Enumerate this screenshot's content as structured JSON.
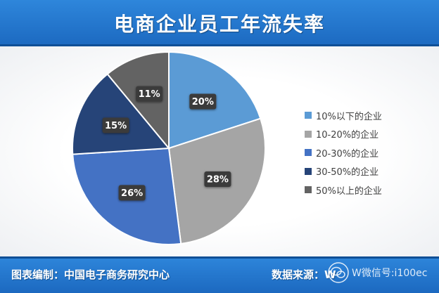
{
  "header": {
    "title": "电商企业员工年流失率"
  },
  "chart_data": {
    "type": "pie",
    "title": "电商企业员工年流失率",
    "categories": [
      "10%以下的企业",
      "10-20%的企业",
      "20-30%的企业",
      "30-50%的企业",
      "50%以上的企业"
    ],
    "values": [
      20,
      28,
      26,
      15,
      11
    ],
    "data_labels": [
      "20%",
      "28%",
      "26%",
      "15%",
      "11%"
    ],
    "colors": [
      "#5b9bd5",
      "#a5a5a5",
      "#4472c4",
      "#264478",
      "#636363"
    ],
    "legend_position": "right",
    "start_angle": "12 o'clock",
    "direction": "clockwise"
  },
  "footer": {
    "left_text": "图表编制：中国电子商务研究中心",
    "right_text": "数据来源：W",
    "watermark_text": "W微信号:i100ec"
  }
}
